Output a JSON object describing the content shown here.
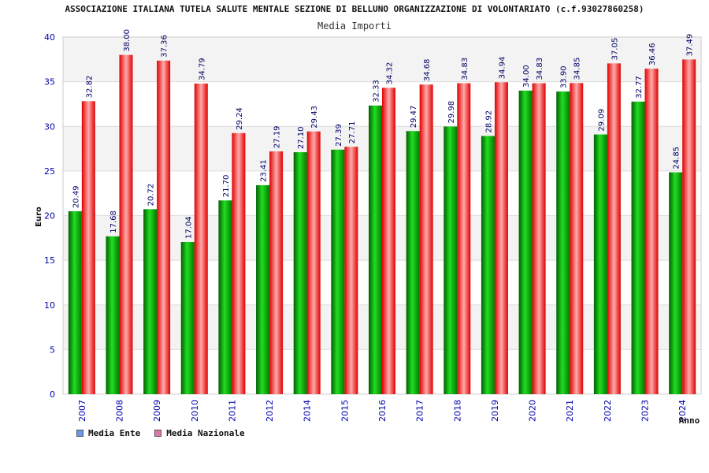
{
  "title": "ASSOCIAZIONE ITALIANA TUTELA SALUTE MENTALE SEZIONE DI BELLUNO ORGANIZZAZIONE DI VOLONTARIATO (c.f.93027860258)",
  "subtitle": "Media Importi",
  "colors": {
    "ente": "#00b000",
    "nazionale": "#ff3030",
    "legend_ente": "#6699ee",
    "legend_nazionale": "#dd77aa",
    "axis_text": "#0000aa",
    "value_text": "#000066"
  },
  "chart_data": {
    "type": "bar",
    "title": "ASSOCIAZIONE ITALIANA TUTELA SALUTE MENTALE SEZIONE DI BELLUNO ORGANIZZAZIONE DI VOLONTARIATO (c.f.93027860258)",
    "subtitle": "Media Importi",
    "xlabel": "Anno",
    "ylabel": "Euro",
    "ylim": [
      0,
      40
    ],
    "yticks": [
      0,
      5,
      10,
      15,
      20,
      25,
      30,
      35,
      40
    ],
    "grid": true,
    "legend_position": "bottom-left",
    "categories": [
      "2007",
      "2008",
      "2009",
      "2010",
      "2011",
      "2012",
      "2014",
      "2015",
      "2016",
      "2017",
      "2018",
      "2019",
      "2020",
      "2021",
      "2022",
      "2023",
      "2024"
    ],
    "series": [
      {
        "name": "Media Ente",
        "values": [
          20.49,
          17.68,
          20.72,
          17.04,
          21.7,
          23.41,
          27.1,
          27.39,
          32.33,
          29.47,
          29.98,
          28.92,
          34.0,
          33.9,
          29.09,
          32.77,
          24.85
        ]
      },
      {
        "name": "Media Nazionale",
        "values": [
          32.82,
          38.0,
          37.36,
          34.79,
          29.24,
          27.19,
          29.43,
          27.71,
          34.32,
          34.68,
          34.83,
          34.94,
          34.83,
          34.85,
          37.05,
          36.46,
          37.49
        ]
      }
    ]
  }
}
